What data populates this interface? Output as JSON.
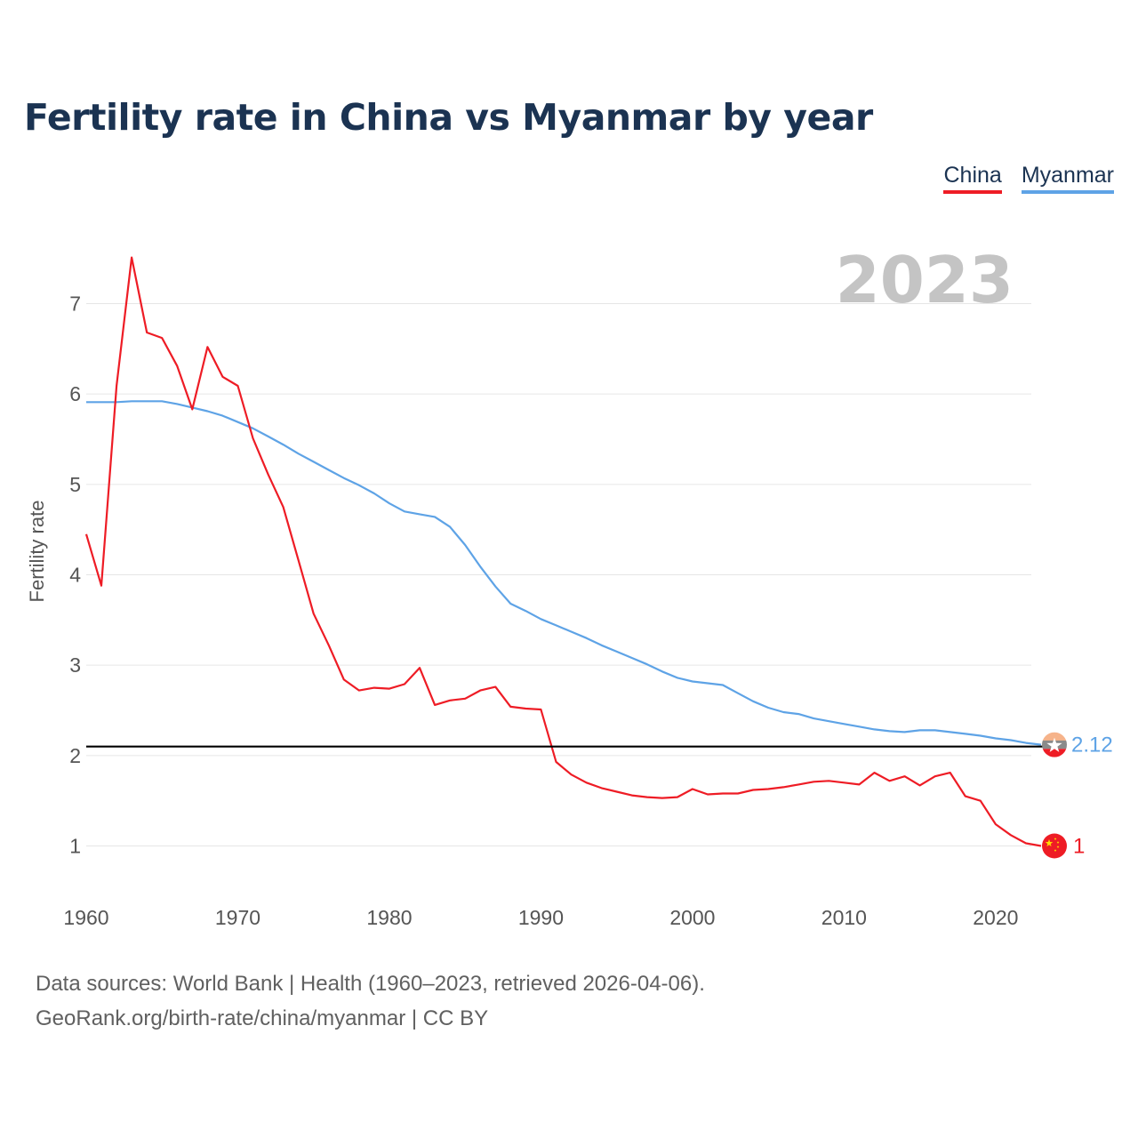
{
  "title": "Fertility rate in China vs Myanmar by year",
  "legend": {
    "china": "China",
    "myanmar": "Myanmar"
  },
  "source": {
    "line1": "Data sources: World Bank | Health (1960–2023, retrieved 2026-04-06).",
    "line2": "GeoRank.org/birth-rate/china/myanmar | CC BY"
  },
  "colors": {
    "china": "#ee1c25",
    "myanmar": "#5ea3e6",
    "reference": "#000000",
    "grid": "#e6e6e6"
  },
  "chart_data": {
    "type": "line",
    "title": "Fertility rate in China vs Myanmar by year",
    "xlabel": "",
    "ylabel": "Fertility rate",
    "current_year": "2023",
    "xlim": [
      1960,
      2023
    ],
    "ylim": [
      0.4,
      7.6
    ],
    "x_ticks": [
      1960,
      1970,
      1980,
      1990,
      2000,
      2010,
      2020
    ],
    "y_ticks": [
      1,
      2,
      3,
      4,
      5,
      6,
      7
    ],
    "reference_line": 2.1,
    "x": [
      1960,
      1961,
      1962,
      1963,
      1964,
      1965,
      1966,
      1967,
      1968,
      1969,
      1970,
      1971,
      1972,
      1973,
      1974,
      1975,
      1976,
      1977,
      1978,
      1979,
      1980,
      1981,
      1982,
      1983,
      1984,
      1985,
      1986,
      1987,
      1988,
      1989,
      1990,
      1991,
      1992,
      1993,
      1994,
      1995,
      1996,
      1997,
      1998,
      1999,
      2000,
      2001,
      2002,
      2003,
      2004,
      2005,
      2006,
      2007,
      2008,
      2009,
      2010,
      2011,
      2012,
      2013,
      2014,
      2015,
      2016,
      2017,
      2018,
      2019,
      2020,
      2021,
      2022,
      2023
    ],
    "series": [
      {
        "name": "China",
        "end_label": "1",
        "values": [
          4.45,
          3.88,
          6.09,
          7.51,
          6.68,
          6.62,
          6.31,
          5.83,
          6.52,
          6.19,
          6.09,
          5.51,
          5.11,
          4.75,
          4.16,
          3.57,
          3.22,
          2.84,
          2.72,
          2.75,
          2.74,
          2.79,
          2.97,
          2.56,
          2.61,
          2.63,
          2.72,
          2.76,
          2.54,
          2.52,
          2.51,
          1.93,
          1.79,
          1.7,
          1.64,
          1.6,
          1.56,
          1.54,
          1.53,
          1.54,
          1.63,
          1.57,
          1.58,
          1.58,
          1.62,
          1.63,
          1.65,
          1.68,
          1.71,
          1.72,
          1.7,
          1.68,
          1.81,
          1.72,
          1.77,
          1.67,
          1.77,
          1.81,
          1.55,
          1.5,
          1.24,
          1.12,
          1.03,
          1.0
        ]
      },
      {
        "name": "Myanmar",
        "end_label": "2.12",
        "values": [
          5.91,
          5.91,
          5.91,
          5.92,
          5.92,
          5.92,
          5.89,
          5.85,
          5.81,
          5.76,
          5.69,
          5.62,
          5.53,
          5.44,
          5.34,
          5.25,
          5.16,
          5.07,
          4.99,
          4.9,
          4.79,
          4.7,
          4.67,
          4.64,
          4.53,
          4.33,
          4.09,
          3.87,
          3.68,
          3.6,
          3.51,
          3.44,
          3.37,
          3.3,
          3.22,
          3.15,
          3.08,
          3.01,
          2.93,
          2.86,
          2.82,
          2.8,
          2.78,
          2.69,
          2.6,
          2.53,
          2.48,
          2.46,
          2.41,
          2.38,
          2.35,
          2.32,
          2.29,
          2.27,
          2.26,
          2.28,
          2.28,
          2.26,
          2.24,
          2.22,
          2.19,
          2.17,
          2.14,
          2.12
        ]
      }
    ]
  }
}
